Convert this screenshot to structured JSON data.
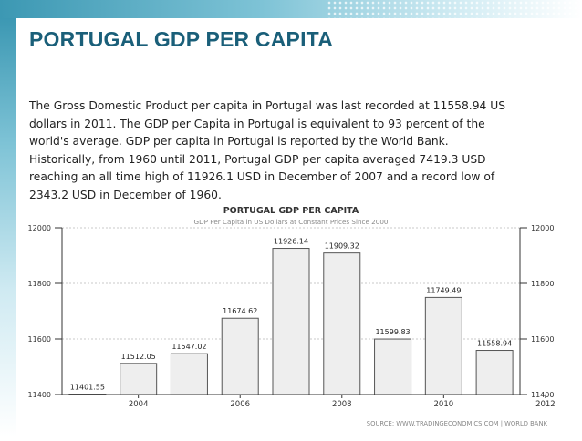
{
  "slide": {
    "title": "PORTUGAL GDP PER CAPITA",
    "description": "The Gross Domestic Product per capita in Portugal was last recorded at 11558.94 US dollars in 2011. The GDP per Capita in Portugal is equivalent to 93 percent of the world's average. GDP per capita in Portugal is reported by the World Bank. Historically, from 1960 until 2011, Portugal GDP per capita averaged 7419.3 USD reaching an all time high of 11926.1 USD in December of 2007 and a record low of 2343.2 USD in December of 1960."
  },
  "colors": {
    "accent": "#3c98b3",
    "title": "#1a5f79",
    "bar_fill": "#eeeeee",
    "bar_stroke": "#555555",
    "grid": "#c8c8c8"
  },
  "chart_data": {
    "type": "bar",
    "title": "PORTUGAL GDP PER CAPITA",
    "subtitle": "GDP Per Capita in US Dollars at Constant Prices Since 2000",
    "source": "SOURCE: WWW.TRADINGECONOMICS.COM | WORLD BANK",
    "categories": [
      "2003",
      "2004",
      "2005",
      "2006",
      "2007",
      "2008",
      "2009",
      "2010",
      "2011"
    ],
    "values": [
      11401.55,
      11512.05,
      11547.02,
      11674.62,
      11926.14,
      11909.32,
      11599.83,
      11749.49,
      11558.94
    ],
    "value_labels": [
      "11401.55",
      "11512.05",
      "11547.02",
      "11674.62",
      "11926.14",
      "11909.32",
      "11599.83",
      "11749.49",
      "11558.94"
    ],
    "x_ticks": [
      "2004",
      "2006",
      "2008",
      "2010",
      "2012"
    ],
    "y_ticks": [
      "11400",
      "11600",
      "11800",
      "12000"
    ],
    "ylim": [
      11400,
      12000
    ],
    "grid": true,
    "xlabel": "",
    "ylabel": ""
  }
}
